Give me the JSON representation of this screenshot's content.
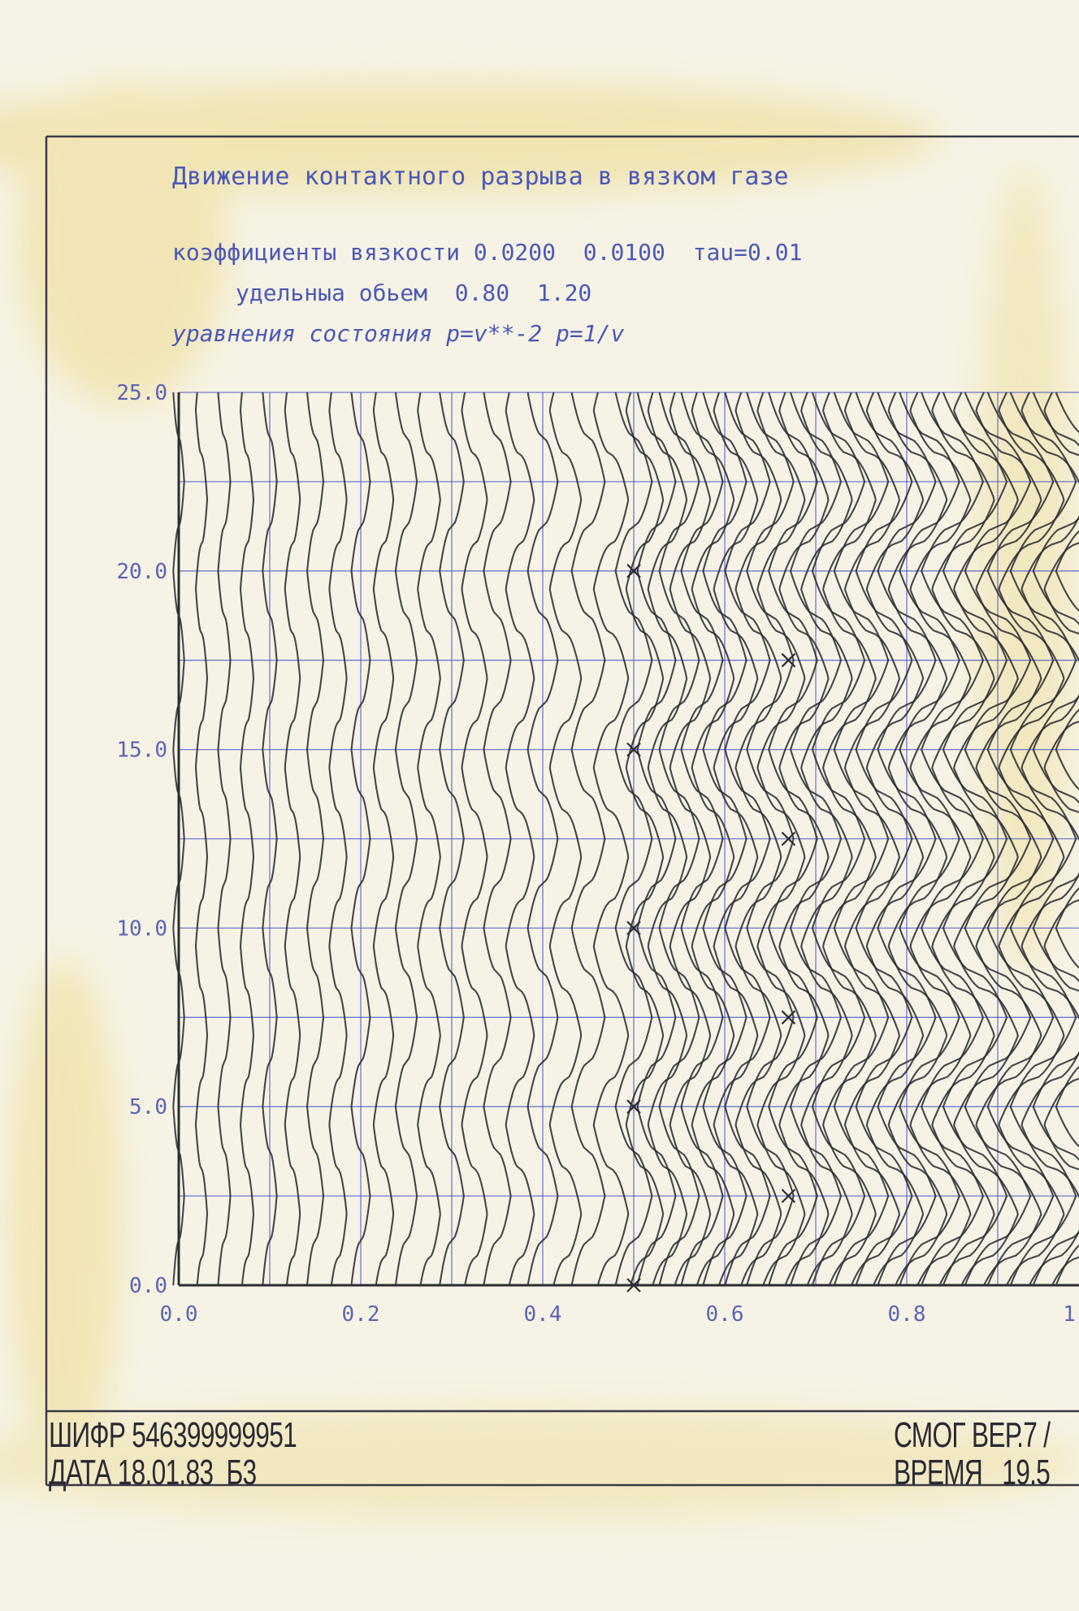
{
  "header": {
    "title": "Движение контактного разрыва в вязком газе",
    "viscosity_line": "коэффициенты вязкости 0.0200  0.0100  тau=0.01",
    "volume_line": "удельныа обьем  0.80  1.20",
    "state_line": "уравнения состояния p=v**-2 p=1/v"
  },
  "footer": {
    "cipher": "ШИФР 546399999951",
    "date": "ДАТА 18.01.83  Б3",
    "version": "СМОГ ВЕР.7 /",
    "time": "ВРЕМЯ   19.5"
  },
  "colors": {
    "paper": "#f6f3e6",
    "stain": "#eedf9a",
    "grid": "#4a5cc8",
    "ink": "#2c2c34",
    "text": "#4a58b8"
  },
  "chart_data": {
    "type": "line",
    "title": "Движение контактного разрыва в вязком газе",
    "xlabel": "",
    "ylabel": "",
    "xlim": [
      0.0,
      1.0
    ],
    "ylim": [
      0.0,
      25.0
    ],
    "x_ticks": [
      "0.0",
      "0.2",
      "0.4",
      "0.6",
      "0.8",
      "1"
    ],
    "y_ticks": [
      "0.0",
      "5.0",
      "10.0",
      "15.0",
      "20.0",
      "25.0"
    ],
    "grid": true,
    "description_params": {
      "viscosity": [
        0.02,
        0.01
      ],
      "tau": 0.01,
      "specific_volume": [
        0.8,
        1.2
      ]
    },
    "lagrangian_lines_x0": [
      0.0,
      0.025,
      0.05,
      0.075,
      0.1,
      0.125,
      0.15,
      0.175,
      0.2,
      0.225,
      0.25,
      0.275,
      0.3,
      0.325,
      0.35,
      0.375,
      0.4,
      0.425,
      0.45,
      0.475,
      0.5,
      0.512,
      0.525,
      0.537,
      0.55,
      0.562,
      0.575,
      0.587,
      0.6,
      0.612,
      0.625,
      0.637,
      0.65,
      0.662,
      0.675,
      0.687,
      0.7,
      0.712,
      0.725,
      0.737,
      0.75,
      0.762,
      0.775,
      0.787,
      0.8,
      0.812,
      0.825,
      0.837,
      0.85,
      0.862,
      0.875,
      0.887,
      0.9,
      0.912,
      0.925,
      0.937,
      0.95,
      0.962,
      0.975,
      0.987,
      1.0
    ],
    "oscillation_period": 5.0,
    "contact_marks": [
      {
        "x": 0.5,
        "y": 0.0
      },
      {
        "x": 0.5,
        "y": 5.0
      },
      {
        "x": 0.5,
        "y": 10.0
      },
      {
        "x": 0.5,
        "y": 15.0
      },
      {
        "x": 0.5,
        "y": 20.0
      },
      {
        "x": 0.67,
        "y": 2.5
      },
      {
        "x": 0.67,
        "y": 7.5
      },
      {
        "x": 0.67,
        "y": 12.5
      },
      {
        "x": 0.67,
        "y": 17.5
      }
    ]
  }
}
